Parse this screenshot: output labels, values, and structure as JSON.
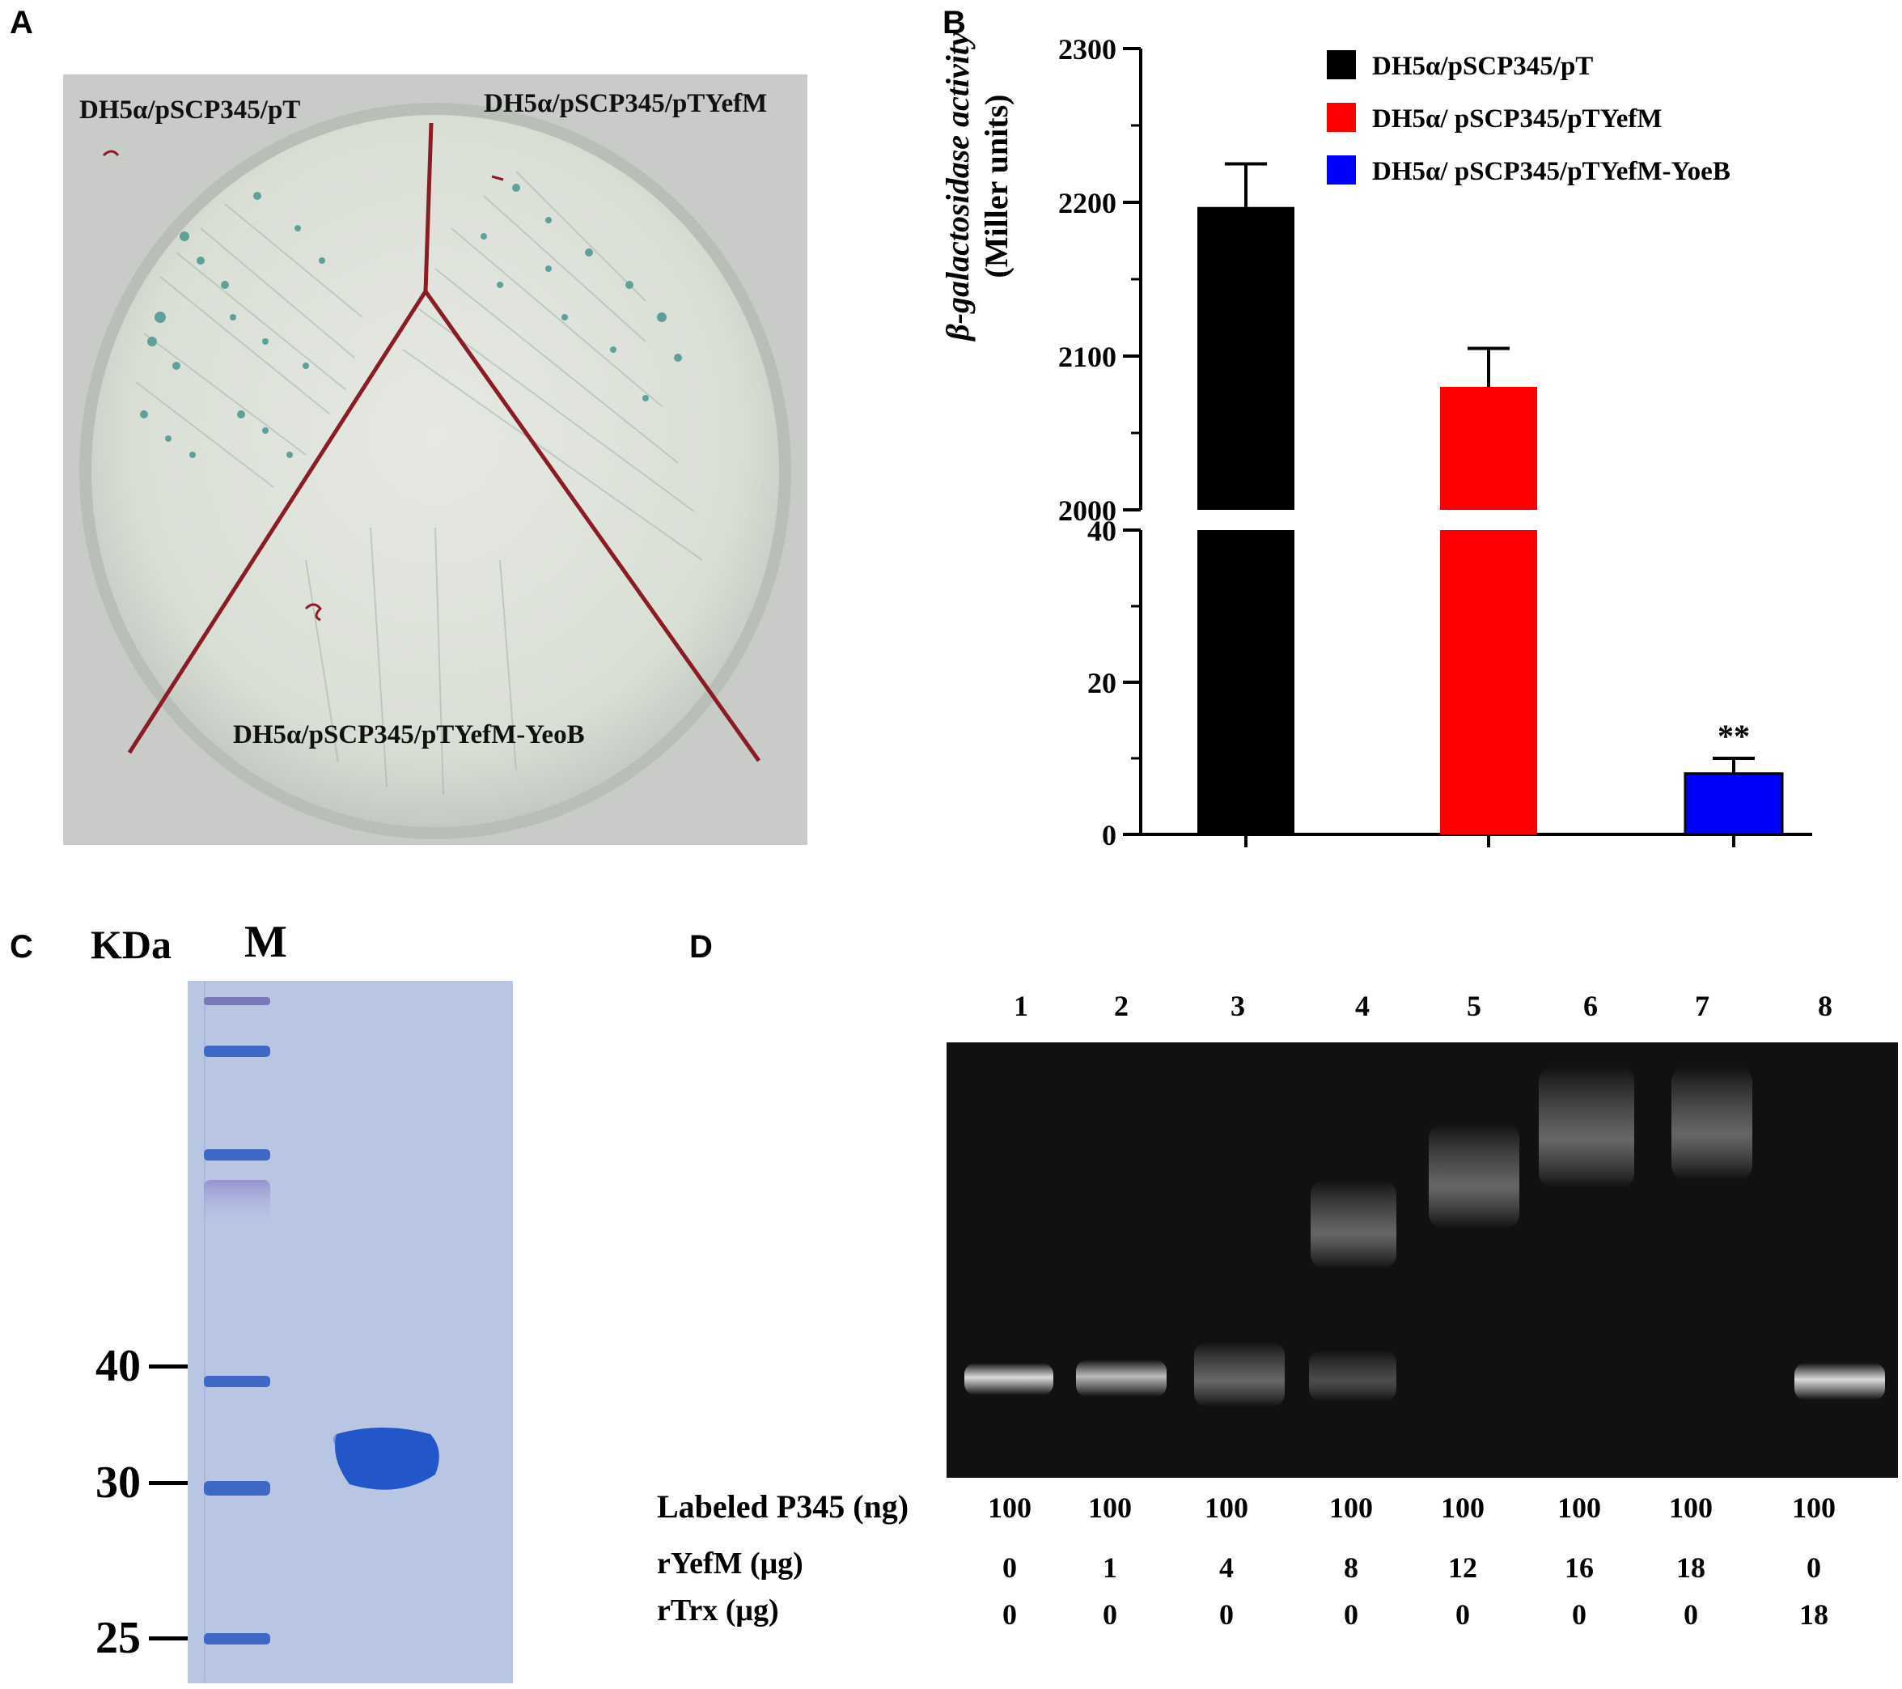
{
  "panels": {
    "A": {
      "letter": "A",
      "plate_labels": {
        "top_left": "DH5α/pSCP345/pT",
        "top_right": "DH5α/pSCP345/pTYefM",
        "bottom": "DH5α/pSCP345/pTYefM-YeoB"
      },
      "colors": {
        "background": "#c9cbc9",
        "agar": "#dfe3dc",
        "divider": "#8a1c24",
        "colony": "#5fa09a"
      }
    },
    "B": {
      "letter": "B",
      "ylabel_line1": "β-galactosidase activity",
      "ylabel_line2": "(Miller units)",
      "significance": "**",
      "yticks_upper": [
        "2300",
        "2200",
        "2100",
        "2000"
      ],
      "yticks_lower": [
        "40",
        "20",
        "0"
      ]
    },
    "C": {
      "letter": "C",
      "unit_label": "KDa",
      "lane_label": "M",
      "mw_markers": [
        "40",
        "30",
        "25"
      ],
      "colors": {
        "gel": "#b8c6e4",
        "band": "#2356c8"
      }
    },
    "D": {
      "letter": "D",
      "lanes": [
        "1",
        "2",
        "3",
        "4",
        "5",
        "6",
        "7",
        "8"
      ],
      "rows": [
        {
          "label": "Labeled P345 (ng)",
          "values": [
            "100",
            "100",
            "100",
            "100",
            "100",
            "100",
            "100",
            "100"
          ]
        },
        {
          "label": "rYefM (μg)",
          "values": [
            "0",
            "1",
            "4",
            "8",
            "12",
            "16",
            "18",
            "0"
          ]
        },
        {
          "label": "rTrx (μg)",
          "values": [
            "0",
            "0",
            "0",
            "0",
            "0",
            "0",
            "0",
            "18"
          ]
        }
      ],
      "colors": {
        "gel": "#111111",
        "band": "#e8e8e8"
      }
    }
  },
  "chart_data": {
    "type": "bar",
    "categories": [
      "DH5α/pSCP345/pT",
      "DH5α/ pSCP345/pTYefM",
      "DH5α/ pSCP345/pTYefM-YoeB"
    ],
    "series": [
      {
        "name": "DH5α/pSCP345/pT",
        "color": "#000000",
        "value": 2197,
        "error": 28
      },
      {
        "name": "DH5α/ pSCP345/pTYefM",
        "color": "#ff0000",
        "value": 2080,
        "error": 25
      },
      {
        "name": "DH5α/ pSCP345/pTYefM-YoeB",
        "color": "#0000ff",
        "value": 8,
        "error": 2
      }
    ],
    "xlabel": "",
    "ylabel": "β-galactosidase activity (Miller units)",
    "ylim_lower": [
      0,
      40
    ],
    "ylim_upper": [
      2000,
      2300
    ],
    "axis_break": true,
    "legend_position": "top-right",
    "grid": false
  }
}
